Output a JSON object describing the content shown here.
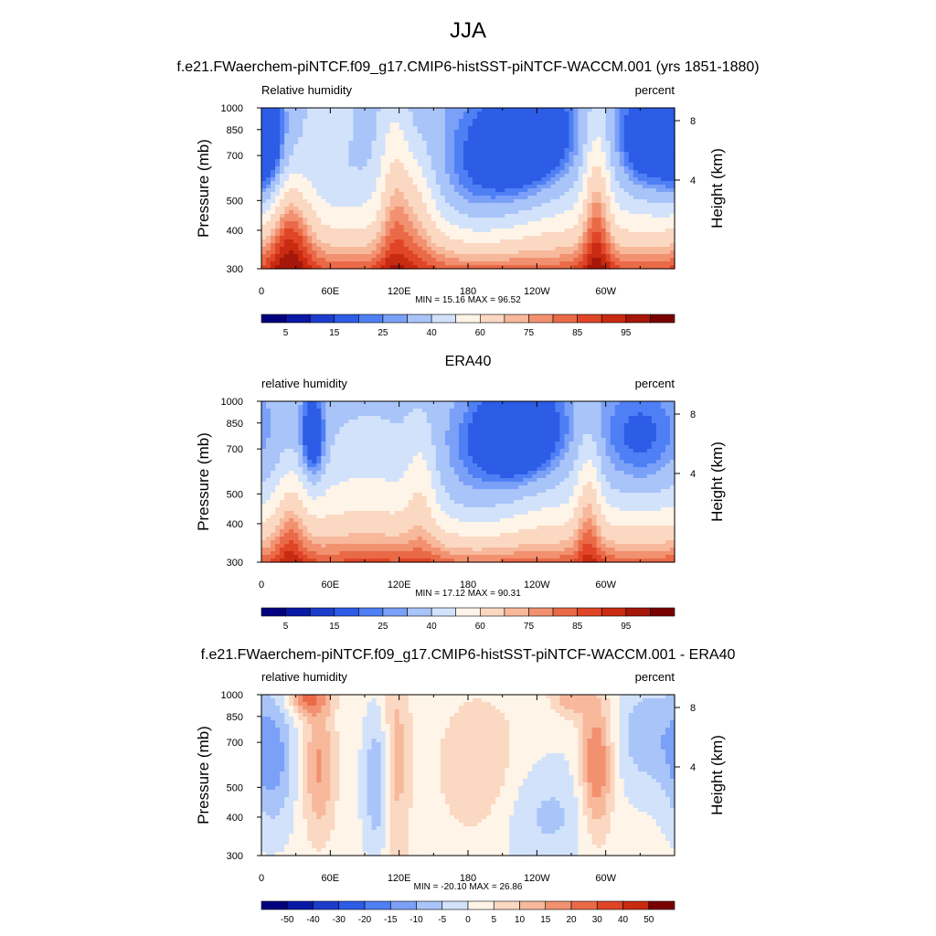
{
  "page": {
    "title": "JJA"
  },
  "colors": {
    "abs_levels": [
      "#00007f",
      "#0a18a6",
      "#1c3ccc",
      "#2d5ce6",
      "#4f7ff5",
      "#7ba0f7",
      "#a8c4f9",
      "#d2e2fb",
      "#fff4e8",
      "#fbd8c2",
      "#f7b89b",
      "#f29170",
      "#ea6a48",
      "#df4526",
      "#c82a12",
      "#a5170a",
      "#7a0000"
    ],
    "diff_levels": [
      "#00007f",
      "#0a18a6",
      "#1c3ccc",
      "#2d5ce6",
      "#4f7ff5",
      "#7ba0f7",
      "#a8c4f9",
      "#d2e2fb",
      "#fff4e8",
      "#fbd8c2",
      "#f7b89b",
      "#f29170",
      "#ea6a48",
      "#df4526",
      "#c82a12",
      "#7a0000"
    ],
    "terrain": "#000000"
  },
  "chart_data": [
    {
      "type": "heatmap",
      "title": "f.e21.FWaerchem-piNTCF.f09_g17.CMIP6-histSST-piNTCF-WACCM.001 (yrs 1851-1880)",
      "left_label": "Relative humidity",
      "right_label": "percent",
      "ylabel": "Pressure (mb)",
      "ylabel_right": "Height (km)",
      "x_ticks": [
        "0",
        "60E",
        "120E",
        "180",
        "120W",
        "60W"
      ],
      "x_tick_values": [
        0,
        60,
        120,
        180,
        240,
        300
      ],
      "xlim": [
        0,
        360
      ],
      "y_ticks": [
        300,
        400,
        500,
        700,
        850,
        1000
      ],
      "ylim": [
        1000,
        300
      ],
      "y_scale": "log",
      "height_ticks": [
        "8",
        "4"
      ],
      "height_tick_values": [
        8,
        4
      ],
      "stats": "MIN =  15.16  MAX =  96.52",
      "min": 15.16,
      "max": 96.52,
      "colorbar_labels": [
        "5",
        "15",
        "25",
        "40",
        "60",
        "75",
        "85",
        "95"
      ],
      "colorbar_levels": 17,
      "field": "model",
      "terrain": true
    },
    {
      "type": "heatmap",
      "title": "ERA40",
      "left_label": "relative humidity",
      "right_label": "percent",
      "ylabel": "Pressure (mb)",
      "ylabel_right": "Height (km)",
      "x_ticks": [
        "0",
        "60E",
        "120E",
        "180",
        "120W",
        "60W"
      ],
      "x_tick_values": [
        0,
        60,
        120,
        180,
        240,
        300
      ],
      "xlim": [
        0,
        360
      ],
      "y_ticks": [
        300,
        400,
        500,
        700,
        850,
        1000
      ],
      "ylim": [
        1000,
        300
      ],
      "y_scale": "log",
      "height_ticks": [
        "8",
        "4"
      ],
      "height_tick_values": [
        8,
        4
      ],
      "stats": "MIN =  17.12  MAX =  90.31",
      "min": 17.12,
      "max": 90.31,
      "colorbar_labels": [
        "5",
        "15",
        "25",
        "40",
        "60",
        "75",
        "85",
        "95"
      ],
      "colorbar_levels": 17,
      "field": "obs",
      "terrain": false
    },
    {
      "type": "heatmap",
      "title": "f.e21.FWaerchem-piNTCF.f09_g17.CMIP6-histSST-piNTCF-WACCM.001 - ERA40",
      "left_label": "relative humidity",
      "right_label": "percent",
      "ylabel": "Pressure (mb)",
      "ylabel_right": "Height (km)",
      "x_ticks": [
        "0",
        "60E",
        "120E",
        "180",
        "120W",
        "60W"
      ],
      "x_tick_values": [
        0,
        60,
        120,
        180,
        240,
        300
      ],
      "xlim": [
        0,
        360
      ],
      "y_ticks": [
        300,
        400,
        500,
        700,
        850,
        1000
      ],
      "ylim": [
        1000,
        300
      ],
      "y_scale": "log",
      "height_ticks": [
        "8",
        "4"
      ],
      "height_tick_values": [
        8,
        4
      ],
      "stats": "MIN = -20.10  MAX =  26.86",
      "min": -20.1,
      "max": 26.86,
      "colorbar_labels": [
        "-50",
        "-40",
        "-30",
        "-20",
        "-15",
        "-10",
        "-5",
        "0",
        "5",
        "10",
        "15",
        "20",
        "30",
        "40",
        "50"
      ],
      "colorbar_levels": 16,
      "field": "diff",
      "terrain": true
    }
  ]
}
